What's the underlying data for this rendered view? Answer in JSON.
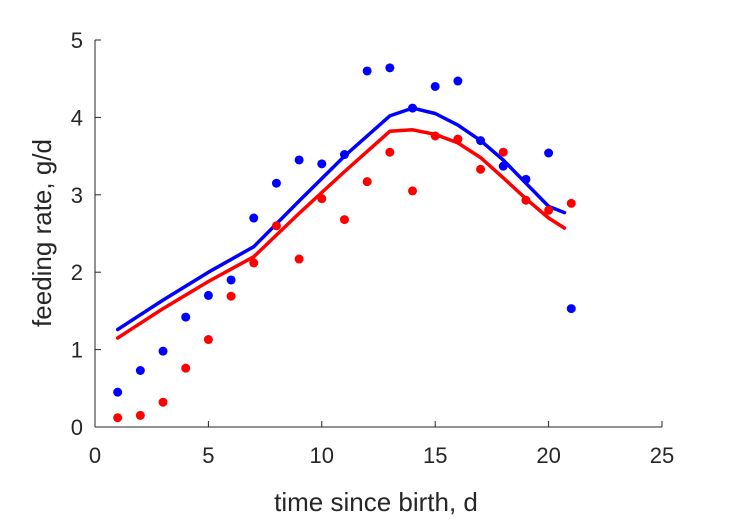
{
  "chart_data": {
    "type": "scatter",
    "title": "",
    "xlabel": "time since birth, d",
    "ylabel": "feeding rate, g/d",
    "xlim": [
      0,
      25
    ],
    "ylim": [
      0,
      5
    ],
    "xticks": [
      0,
      5,
      10,
      15,
      20,
      25
    ],
    "yticks": [
      0,
      1,
      2,
      3,
      4,
      5
    ],
    "grid": false,
    "legend": "none",
    "series": [
      {
        "color": "#0000ff",
        "points": {
          "x": [
            1,
            2,
            3,
            4,
            5,
            6,
            7,
            8,
            9,
            10,
            11,
            12,
            13,
            14,
            15,
            16,
            17,
            18,
            19,
            20,
            21
          ],
          "y": [
            0.45,
            0.73,
            0.98,
            1.42,
            1.7,
            1.9,
            2.7,
            3.15,
            3.45,
            3.4,
            3.52,
            4.6,
            4.64,
            4.12,
            4.4,
            4.47,
            3.7,
            3.37,
            3.2,
            3.54,
            1.53
          ]
        },
        "fit": {
          "x": [
            1,
            3,
            5,
            7,
            9,
            11,
            13,
            14,
            15,
            16,
            17,
            18,
            19,
            20,
            20.7
          ],
          "y": [
            1.26,
            1.64,
            2.0,
            2.33,
            2.92,
            3.5,
            4.02,
            4.12,
            4.05,
            3.9,
            3.7,
            3.45,
            3.15,
            2.85,
            2.77
          ]
        }
      },
      {
        "color": "#ff0000",
        "points": {
          "x": [
            1,
            2,
            3,
            4,
            5,
            6,
            7,
            8,
            9,
            10,
            11,
            12,
            13,
            14,
            15,
            16,
            17,
            18,
            19,
            20,
            21
          ],
          "y": [
            0.12,
            0.15,
            0.32,
            0.76,
            1.13,
            1.69,
            2.12,
            2.6,
            2.17,
            2.95,
            2.68,
            3.17,
            3.55,
            3.05,
            3.76,
            3.72,
            3.33,
            3.55,
            2.93,
            2.8,
            2.89
          ]
        },
        "fit": {
          "x": [
            1,
            3,
            5,
            7,
            9,
            11,
            13,
            14,
            15,
            16,
            17,
            18,
            19,
            20,
            20.7
          ],
          "y": [
            1.15,
            1.53,
            1.88,
            2.2,
            2.76,
            3.3,
            3.82,
            3.84,
            3.78,
            3.67,
            3.48,
            3.22,
            2.95,
            2.7,
            2.57
          ]
        }
      }
    ]
  }
}
